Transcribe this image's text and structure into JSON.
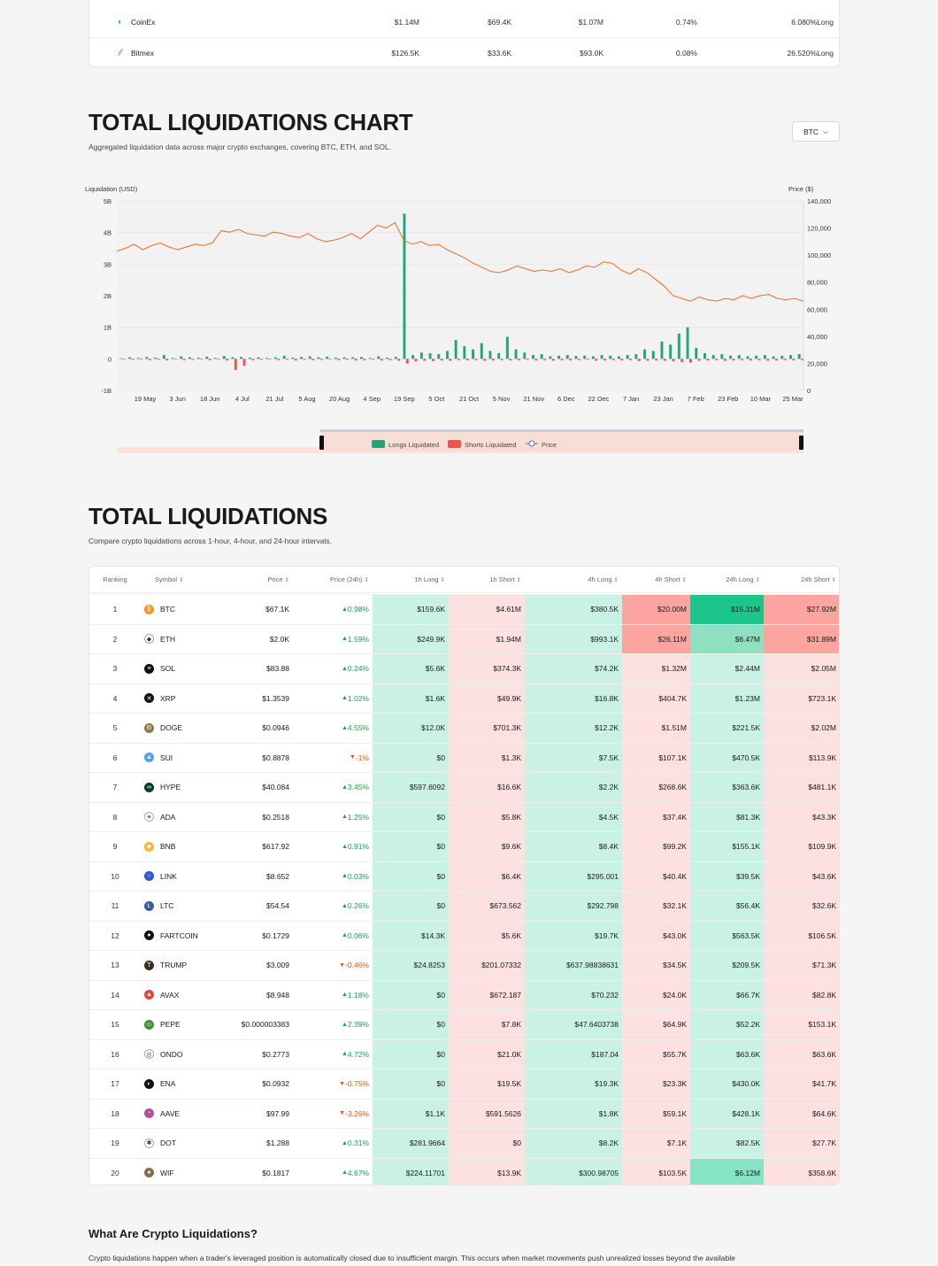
{
  "exchanges": [
    {
      "icon": "coinex-icon",
      "name": "CoinEx",
      "v1": "$1.14M",
      "v2": "$69.4K",
      "v3": "$1.07M",
      "v4": "0.74%",
      "v5": "6.080%Long"
    },
    {
      "icon": "bitmex-icon",
      "name": "Bitmex",
      "v1": "$126.5K",
      "v2": "$33.6K",
      "v3": "$93.0K",
      "v4": "0.08%",
      "v5": "26.520%Long"
    }
  ],
  "chart_section": {
    "title": "TOTAL LIQUIDATIONS CHART",
    "subtitle": "Aggregated liquidation data across major crypto exchanges, covering BTC, ETH, and SOL.",
    "selector": "BTC"
  },
  "chart_data": {
    "type": "bar+line",
    "ylabel_left": "Liquidation (USD)",
    "ylabel_right": "Price ($)",
    "left_ticks": [
      "5B",
      "4B",
      "3B",
      "2B",
      "1B",
      "0",
      "-1B"
    ],
    "right_ticks": [
      "140,000",
      "120,000",
      "100,000",
      "80,000",
      "60,000",
      "40,000",
      "20,000",
      "0"
    ],
    "ylim_left": [
      -1,
      5
    ],
    "ylim_right": [
      0,
      140000
    ],
    "x_ticks": [
      "19 May",
      "3 Jun",
      "18 Jun",
      "4 Jul",
      "21 Jul",
      "5 Aug",
      "20 Aug",
      "4 Sep",
      "19 Sep",
      "5 Oct",
      "21 Oct",
      "5 Nov",
      "21 Nov",
      "6 Dec",
      "22 Dec",
      "7 Jan",
      "23 Jan",
      "7 Feb",
      "23 Feb",
      "10 Mar",
      "25 Mar"
    ],
    "price_series": {
      "name": "Price",
      "values": [
        103000,
        105000,
        108000,
        104000,
        107000,
        109000,
        106000,
        104000,
        106000,
        108000,
        107000,
        109000,
        118000,
        117000,
        119000,
        116000,
        115000,
        114000,
        117000,
        116000,
        114000,
        113000,
        116000,
        112000,
        110000,
        111000,
        113000,
        116000,
        112000,
        117000,
        122000,
        120000,
        124000,
        111000,
        108000,
        110000,
        107000,
        108000,
        104000,
        101000,
        98000,
        94000,
        91000,
        88000,
        87000,
        89000,
        92000,
        90000,
        88000,
        89000,
        88000,
        90000,
        87000,
        89000,
        92000,
        91000,
        95000,
        94000,
        89000,
        86000,
        90000,
        87000,
        82000,
        77000,
        70000,
        68000,
        66000,
        69000,
        67000,
        66000,
        68000,
        67000,
        70000,
        68000,
        70000,
        71000,
        68000,
        67000,
        68000,
        66000
      ],
      "legend": "Price"
    },
    "longs": {
      "name": "Longs Liquidated",
      "values": [
        0.02,
        0.05,
        0.03,
        0.06,
        0.04,
        0.12,
        0.03,
        0.08,
        0.05,
        0.04,
        0.07,
        0.03,
        0.09,
        0.05,
        0.06,
        0.04,
        0.05,
        0.03,
        0.05,
        0.1,
        0.04,
        0.06,
        0.08,
        0.05,
        0.07,
        0.04,
        0.05,
        0.05,
        0.06,
        0.03,
        0.08,
        0.04,
        0.06,
        4.6,
        0.12,
        0.2,
        0.18,
        0.15,
        0.25,
        0.6,
        0.4,
        0.3,
        0.5,
        0.25,
        0.18,
        0.7,
        0.3,
        0.2,
        0.12,
        0.15,
        0.08,
        0.1,
        0.12,
        0.09,
        0.1,
        0.08,
        0.12,
        0.1,
        0.08,
        0.12,
        0.15,
        0.3,
        0.25,
        0.55,
        0.45,
        0.8,
        1.0,
        0.35,
        0.18,
        0.12,
        0.15,
        0.1,
        0.12,
        0.08,
        0.1,
        0.12,
        0.08,
        0.1,
        0.12,
        0.15
      ]
    },
    "shorts": {
      "name": "Shorts Liquidated",
      "values": [
        0.02,
        0.03,
        0.02,
        0.04,
        0.03,
        0.05,
        0.02,
        0.04,
        0.03,
        0.02,
        0.04,
        0.02,
        0.05,
        0.35,
        0.22,
        0.04,
        0.03,
        0.02,
        0.04,
        0.03,
        0.05,
        0.03,
        0.04,
        0.03,
        0.02,
        0.04,
        0.03,
        0.05,
        0.04,
        0.03,
        0.05,
        0.04,
        0.06,
        0.15,
        0.08,
        0.06,
        0.07,
        0.05,
        0.06,
        0.04,
        0.05,
        0.04,
        0.06,
        0.05,
        0.04,
        0.05,
        0.04,
        0.03,
        0.05,
        0.04,
        0.06,
        0.04,
        0.05,
        0.04,
        0.03,
        0.06,
        0.05,
        0.04,
        0.05,
        0.04,
        0.07,
        0.06,
        0.05,
        0.06,
        0.08,
        0.1,
        0.12,
        0.06,
        0.05,
        0.04,
        0.06,
        0.05,
        0.04,
        0.05,
        0.04,
        0.06,
        0.05,
        0.04,
        0.05,
        0.04
      ]
    },
    "legend": [
      "Longs Liquidated",
      "Shorts Liquidated",
      "Price"
    ],
    "colors": {
      "longs": "#1fa67a",
      "shorts": "#ef5350",
      "price": "#f26b1d"
    }
  },
  "liq_section": {
    "title": "TOTAL LIQUIDATIONS",
    "subtitle": "Compare crypto liquidations across 1-hour, 4-hour, and 24-hour intervals."
  },
  "liq_table": {
    "headers": [
      "Ranking",
      "Symbol",
      "Price",
      "Price (24h)",
      "1h Long",
      "1h Short",
      "4h Long",
      "4h Short",
      "24h Long",
      "24h Short"
    ],
    "rows": [
      {
        "rank": "1",
        "icon": "btc-icon",
        "symbol": "BTC",
        "price": "$67.1K",
        "change": "0.98%",
        "dir": "up",
        "h1l": "$159.6K",
        "h1s": "$4.61M",
        "h4l": "$380.5K",
        "h4s": "$20.00M",
        "d1l": "$15.31M",
        "d1s": "$27.92M"
      },
      {
        "rank": "2",
        "icon": "eth-icon",
        "symbol": "ETH",
        "price": "$2.0K",
        "change": "1.59%",
        "dir": "up",
        "h1l": "$249.9K",
        "h1s": "$1.94M",
        "h4l": "$993.1K",
        "h4s": "$26.11M",
        "d1l": "$6.47M",
        "d1s": "$31.89M"
      },
      {
        "rank": "3",
        "icon": "sol-icon",
        "symbol": "SOL",
        "price": "$83.88",
        "change": "0.24%",
        "dir": "up",
        "h1l": "$5.6K",
        "h1s": "$374.3K",
        "h4l": "$74.2K",
        "h4s": "$1.32M",
        "d1l": "$2.44M",
        "d1s": "$2.05M"
      },
      {
        "rank": "4",
        "icon": "xrp-icon",
        "symbol": "XRP",
        "price": "$1.3539",
        "change": "1.02%",
        "dir": "up",
        "h1l": "$1.6K",
        "h1s": "$49.9K",
        "h4l": "$16.8K",
        "h4s": "$404.7K",
        "d1l": "$1.23M",
        "d1s": "$723.1K"
      },
      {
        "rank": "5",
        "icon": "doge-icon",
        "symbol": "DOGE",
        "price": "$0.0946",
        "change": "4.55%",
        "dir": "up",
        "h1l": "$12.0K",
        "h1s": "$701.3K",
        "h4l": "$12.2K",
        "h4s": "$1.51M",
        "d1l": "$221.5K",
        "d1s": "$2.02M"
      },
      {
        "rank": "6",
        "icon": "sui-icon",
        "symbol": "SUI",
        "price": "$0.8878",
        "change": "-1%",
        "dir": "down",
        "h1l": "$0",
        "h1s": "$1.3K",
        "h4l": "$7.5K",
        "h4s": "$107.1K",
        "d1l": "$470.5K",
        "d1s": "$113.9K"
      },
      {
        "rank": "7",
        "icon": "hype-icon",
        "symbol": "HYPE",
        "price": "$40.084",
        "change": "3.45%",
        "dir": "up",
        "h1l": "$597.6092",
        "h1s": "$16.6K",
        "h4l": "$2.2K",
        "h4s": "$268.6K",
        "d1l": "$363.6K",
        "d1s": "$481.1K"
      },
      {
        "rank": "8",
        "icon": "ada-icon",
        "symbol": "ADA",
        "price": "$0.2518",
        "change": "1.25%",
        "dir": "up",
        "h1l": "$0",
        "h1s": "$5.8K",
        "h4l": "$4.5K",
        "h4s": "$37.4K",
        "d1l": "$81.3K",
        "d1s": "$43.3K"
      },
      {
        "rank": "9",
        "icon": "bnb-icon",
        "symbol": "BNB",
        "price": "$617.92",
        "change": "0.91%",
        "dir": "up",
        "h1l": "$0",
        "h1s": "$9.6K",
        "h4l": "$8.4K",
        "h4s": "$99.2K",
        "d1l": "$155.1K",
        "d1s": "$109.9K"
      },
      {
        "rank": "10",
        "icon": "link-icon",
        "symbol": "LINK",
        "price": "$8.652",
        "change": "0.03%",
        "dir": "up",
        "h1l": "$0",
        "h1s": "$6.4K",
        "h4l": "$295.001",
        "h4s": "$40.4K",
        "d1l": "$39.5K",
        "d1s": "$43.6K"
      },
      {
        "rank": "11",
        "icon": "ltc-icon",
        "symbol": "LTC",
        "price": "$54.54",
        "change": "0.26%",
        "dir": "up",
        "h1l": "$0",
        "h1s": "$673.562",
        "h4l": "$292.798",
        "h4s": "$32.1K",
        "d1l": "$56.4K",
        "d1s": "$32.6K"
      },
      {
        "rank": "12",
        "icon": "fartcoin-icon",
        "symbol": "FARTCOIN",
        "price": "$0.1729",
        "change": "0.06%",
        "dir": "up",
        "h1l": "$14.3K",
        "h1s": "$5.6K",
        "h4l": "$19.7K",
        "h4s": "$43.0K",
        "d1l": "$563.5K",
        "d1s": "$106.5K"
      },
      {
        "rank": "13",
        "icon": "trump-icon",
        "symbol": "TRUMP",
        "price": "$3.009",
        "change": "-0.46%",
        "dir": "down",
        "h1l": "$24.8253",
        "h1s": "$201.07332",
        "h4l": "$637.98838631",
        "h4s": "$34.5K",
        "d1l": "$209.5K",
        "d1s": "$71.3K"
      },
      {
        "rank": "14",
        "icon": "avax-icon",
        "symbol": "AVAX",
        "price": "$8.948",
        "change": "1.18%",
        "dir": "up",
        "h1l": "$0",
        "h1s": "$672.187",
        "h4l": "$70.232",
        "h4s": "$24.0K",
        "d1l": "$66.7K",
        "d1s": "$82.8K"
      },
      {
        "rank": "15",
        "icon": "pepe-icon",
        "symbol": "PEPE",
        "price": "$0.000003383",
        "change": "2.39%",
        "dir": "up",
        "h1l": "$0",
        "h1s": "$7.8K",
        "h4l": "$47.6403738",
        "h4s": "$64.9K",
        "d1l": "$52.2K",
        "d1s": "$153.1K"
      },
      {
        "rank": "16",
        "icon": "ondo-icon",
        "symbol": "ONDO",
        "price": "$0.2773",
        "change": "4.72%",
        "dir": "up",
        "h1l": "$0",
        "h1s": "$21.0K",
        "h4l": "$187.04",
        "h4s": "$55.7K",
        "d1l": "$63.6K",
        "d1s": "$63.6K"
      },
      {
        "rank": "17",
        "icon": "ena-icon",
        "symbol": "ENA",
        "price": "$0.0932",
        "change": "-0.75%",
        "dir": "down",
        "h1l": "$0",
        "h1s": "$19.5K",
        "h4l": "$19.3K",
        "h4s": "$23.3K",
        "d1l": "$430.0K",
        "d1s": "$41.7K"
      },
      {
        "rank": "18",
        "icon": "aave-icon",
        "symbol": "AAVE",
        "price": "$97.99",
        "change": "-3.26%",
        "dir": "down",
        "h1l": "$1.1K",
        "h1s": "$591.5626",
        "h4l": "$1.8K",
        "h4s": "$59.1K",
        "d1l": "$428.1K",
        "d1s": "$64.6K"
      },
      {
        "rank": "19",
        "icon": "dot-icon",
        "symbol": "DOT",
        "price": "$1.288",
        "change": "0.31%",
        "dir": "up",
        "h1l": "$281.9664",
        "h1s": "$0",
        "h4l": "$8.2K",
        "h4s": "$7.1K",
        "d1l": "$82.5K",
        "d1s": "$27.7K"
      },
      {
        "rank": "20",
        "icon": "wif-icon",
        "symbol": "WIF",
        "price": "$0.1817",
        "change": "4.67%",
        "dir": "up",
        "h1l": "$224.11701",
        "h1s": "$13.9K",
        "h4l": "$300.98705",
        "h4s": "$103.5K",
        "d1l": "$6.12M",
        "d1s": "$358.6K"
      }
    ]
  },
  "faq": {
    "title": "What Are Crypto Liquidations?",
    "text": "Crypto liquidations happen when a trader's leveraged position is automatically closed due to insufficient margin. This occurs when market movements push unrealized losses beyond the available"
  }
}
